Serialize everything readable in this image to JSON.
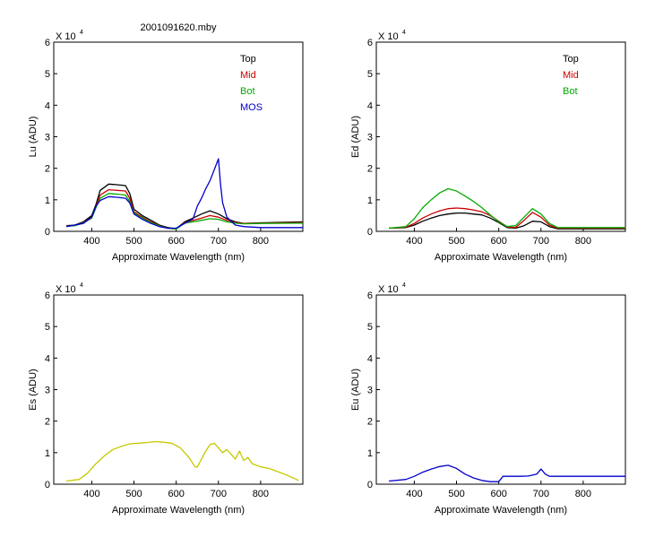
{
  "figure_title": "2001091620.mby",
  "colors": {
    "top": "#000000",
    "mid": "#cc0000",
    "bot": "#00aa00",
    "mos": "#0000cc",
    "es": "#c8c800"
  },
  "chart_data": [
    {
      "type": "line",
      "panel": "top-left",
      "title": "2001091620.mby",
      "xlabel": "Approximate Wavelength (nm)",
      "ylabel": "Lu (ADU)",
      "y_multiplier": "X 10",
      "y_multiplier_exp": "4",
      "xlim": [
        310,
        900
      ],
      "ylim": [
        0,
        6
      ],
      "xticks": [
        400,
        500,
        600,
        700,
        800
      ],
      "yticks": [
        0,
        1,
        2,
        3,
        4,
        5,
        6
      ],
      "legend": [
        "Top",
        "Mid",
        "Bot",
        "MOS"
      ],
      "legend_position": "top-right",
      "series": [
        {
          "name": "Top",
          "color": "#000000",
          "x": [
            340,
            360,
            380,
            400,
            410,
            420,
            440,
            460,
            480,
            490,
            500,
            520,
            540,
            560,
            580,
            600,
            620,
            640,
            660,
            680,
            700,
            720,
            740,
            760,
            800,
            900
          ],
          "y": [
            0.18,
            0.2,
            0.3,
            0.5,
            0.85,
            1.3,
            1.5,
            1.48,
            1.45,
            1.2,
            0.7,
            0.5,
            0.35,
            0.2,
            0.12,
            0.08,
            0.3,
            0.42,
            0.55,
            0.65,
            0.55,
            0.4,
            0.3,
            0.25,
            0.27,
            0.3
          ]
        },
        {
          "name": "Mid",
          "color": "#cc0000",
          "x": [
            340,
            360,
            380,
            400,
            410,
            420,
            440,
            460,
            480,
            490,
            500,
            520,
            540,
            560,
            580,
            600,
            620,
            640,
            660,
            680,
            700,
            720,
            740,
            760,
            800,
            900
          ],
          "y": [
            0.17,
            0.19,
            0.28,
            0.45,
            0.8,
            1.15,
            1.32,
            1.3,
            1.28,
            1.05,
            0.62,
            0.45,
            0.3,
            0.18,
            0.1,
            0.07,
            0.28,
            0.35,
            0.42,
            0.5,
            0.45,
            0.35,
            0.28,
            0.25,
            0.26,
            0.28
          ]
        },
        {
          "name": "Bot",
          "color": "#00aa00",
          "x": [
            340,
            360,
            380,
            400,
            410,
            420,
            440,
            460,
            480,
            490,
            500,
            520,
            540,
            560,
            580,
            600,
            620,
            640,
            660,
            680,
            700,
            720,
            740,
            760,
            800,
            900
          ],
          "y": [
            0.16,
            0.18,
            0.27,
            0.42,
            0.75,
            1.05,
            1.2,
            1.18,
            1.15,
            0.95,
            0.58,
            0.42,
            0.28,
            0.17,
            0.1,
            0.07,
            0.26,
            0.3,
            0.35,
            0.4,
            0.38,
            0.3,
            0.26,
            0.24,
            0.25,
            0.26
          ]
        },
        {
          "name": "MOS",
          "color": "#0000cc",
          "x": [
            340,
            380,
            400,
            410,
            420,
            440,
            460,
            480,
            490,
            500,
            520,
            540,
            560,
            580,
            600,
            640,
            650,
            660,
            670,
            680,
            690,
            700,
            705,
            710,
            720,
            740,
            760,
            800,
            900
          ],
          "y": [
            0.15,
            0.25,
            0.45,
            0.8,
            0.98,
            1.1,
            1.08,
            1.05,
            0.9,
            0.55,
            0.38,
            0.25,
            0.15,
            0.1,
            0.1,
            0.4,
            0.8,
            1.05,
            1.35,
            1.6,
            1.95,
            2.3,
            1.5,
            0.9,
            0.45,
            0.2,
            0.15,
            0.12,
            0.12
          ]
        }
      ]
    },
    {
      "type": "line",
      "panel": "top-right",
      "title": "",
      "xlabel": "Approximate Wavelength (nm)",
      "ylabel": "Ed (ADU)",
      "y_multiplier": "X 10",
      "y_multiplier_exp": "4",
      "xlim": [
        310,
        900
      ],
      "ylim": [
        0,
        6
      ],
      "xticks": [
        400,
        500,
        600,
        700,
        800
      ],
      "yticks": [
        0,
        1,
        2,
        3,
        4,
        5,
        6
      ],
      "legend": [
        "Top",
        "Mid",
        "Bot"
      ],
      "legend_position": "top-right",
      "series": [
        {
          "name": "Top",
          "color": "#000000",
          "x": [
            340,
            380,
            400,
            420,
            440,
            460,
            480,
            500,
            520,
            540,
            560,
            580,
            600,
            620,
            640,
            660,
            680,
            700,
            720,
            740,
            800,
            900
          ],
          "y": [
            0.1,
            0.12,
            0.2,
            0.32,
            0.42,
            0.5,
            0.55,
            0.58,
            0.58,
            0.55,
            0.52,
            0.42,
            0.28,
            0.12,
            0.1,
            0.18,
            0.32,
            0.3,
            0.15,
            0.08,
            0.08,
            0.08
          ]
        },
        {
          "name": "Mid",
          "color": "#cc0000",
          "x": [
            340,
            380,
            400,
            420,
            440,
            460,
            480,
            500,
            520,
            540,
            560,
            580,
            600,
            620,
            640,
            660,
            680,
            700,
            720,
            740,
            800,
            900
          ],
          "y": [
            0.1,
            0.13,
            0.25,
            0.42,
            0.55,
            0.65,
            0.72,
            0.74,
            0.72,
            0.68,
            0.62,
            0.5,
            0.32,
            0.14,
            0.12,
            0.35,
            0.6,
            0.45,
            0.2,
            0.1,
            0.1,
            0.1
          ]
        },
        {
          "name": "Bot",
          "color": "#00aa00",
          "x": [
            340,
            380,
            400,
            420,
            440,
            460,
            480,
            500,
            520,
            540,
            560,
            580,
            600,
            620,
            640,
            660,
            680,
            700,
            720,
            740,
            800,
            900
          ],
          "y": [
            0.1,
            0.15,
            0.4,
            0.75,
            1.0,
            1.22,
            1.35,
            1.28,
            1.12,
            0.95,
            0.75,
            0.52,
            0.3,
            0.15,
            0.18,
            0.45,
            0.72,
            0.55,
            0.25,
            0.12,
            0.12,
            0.12
          ]
        }
      ]
    },
    {
      "type": "line",
      "panel": "bottom-left",
      "title": "",
      "xlabel": "Approximate Wavelength (nm)",
      "ylabel": "Es (ADU)",
      "y_multiplier": "X 10",
      "y_multiplier_exp": "4",
      "xlim": [
        310,
        900
      ],
      "ylim": [
        0,
        6
      ],
      "xticks": [
        400,
        500,
        600,
        700,
        800
      ],
      "yticks": [
        0,
        1,
        2,
        3,
        4,
        5,
        6
      ],
      "series": [
        {
          "name": "Es",
          "color": "#c8c800",
          "x": [
            340,
            370,
            390,
            410,
            430,
            450,
            470,
            490,
            510,
            530,
            550,
            570,
            590,
            610,
            630,
            645,
            650,
            660,
            670,
            680,
            690,
            700,
            710,
            720,
            730,
            740,
            750,
            760,
            770,
            780,
            800,
            820,
            840,
            860,
            880,
            890
          ],
          "y": [
            0.1,
            0.15,
            0.35,
            0.65,
            0.9,
            1.1,
            1.2,
            1.28,
            1.3,
            1.32,
            1.35,
            1.33,
            1.3,
            1.15,
            0.85,
            0.55,
            0.55,
            0.8,
            1.05,
            1.25,
            1.3,
            1.15,
            1.0,
            1.1,
            0.95,
            0.8,
            1.05,
            0.75,
            0.85,
            0.65,
            0.55,
            0.5,
            0.4,
            0.3,
            0.18,
            0.12
          ]
        }
      ]
    },
    {
      "type": "line",
      "panel": "bottom-right",
      "title": "",
      "xlabel": "Approximate Wavelength (nm)",
      "ylabel": "Eu (ADU)",
      "y_multiplier": "X 10",
      "y_multiplier_exp": "4",
      "xlim": [
        310,
        900
      ],
      "ylim": [
        0,
        6
      ],
      "xticks": [
        400,
        500,
        600,
        700,
        800
      ],
      "yticks": [
        0,
        1,
        2,
        3,
        4,
        5,
        6
      ],
      "series": [
        {
          "name": "Eu",
          "color": "#0000cc",
          "x": [
            340,
            380,
            400,
            420,
            440,
            460,
            480,
            500,
            520,
            540,
            560,
            580,
            600,
            610,
            630,
            650,
            670,
            690,
            700,
            710,
            720,
            740,
            800,
            900
          ],
          "y": [
            0.1,
            0.15,
            0.25,
            0.38,
            0.48,
            0.56,
            0.6,
            0.5,
            0.32,
            0.2,
            0.12,
            0.08,
            0.08,
            0.25,
            0.25,
            0.25,
            0.26,
            0.32,
            0.48,
            0.32,
            0.25,
            0.25,
            0.25,
            0.25
          ]
        }
      ]
    }
  ]
}
